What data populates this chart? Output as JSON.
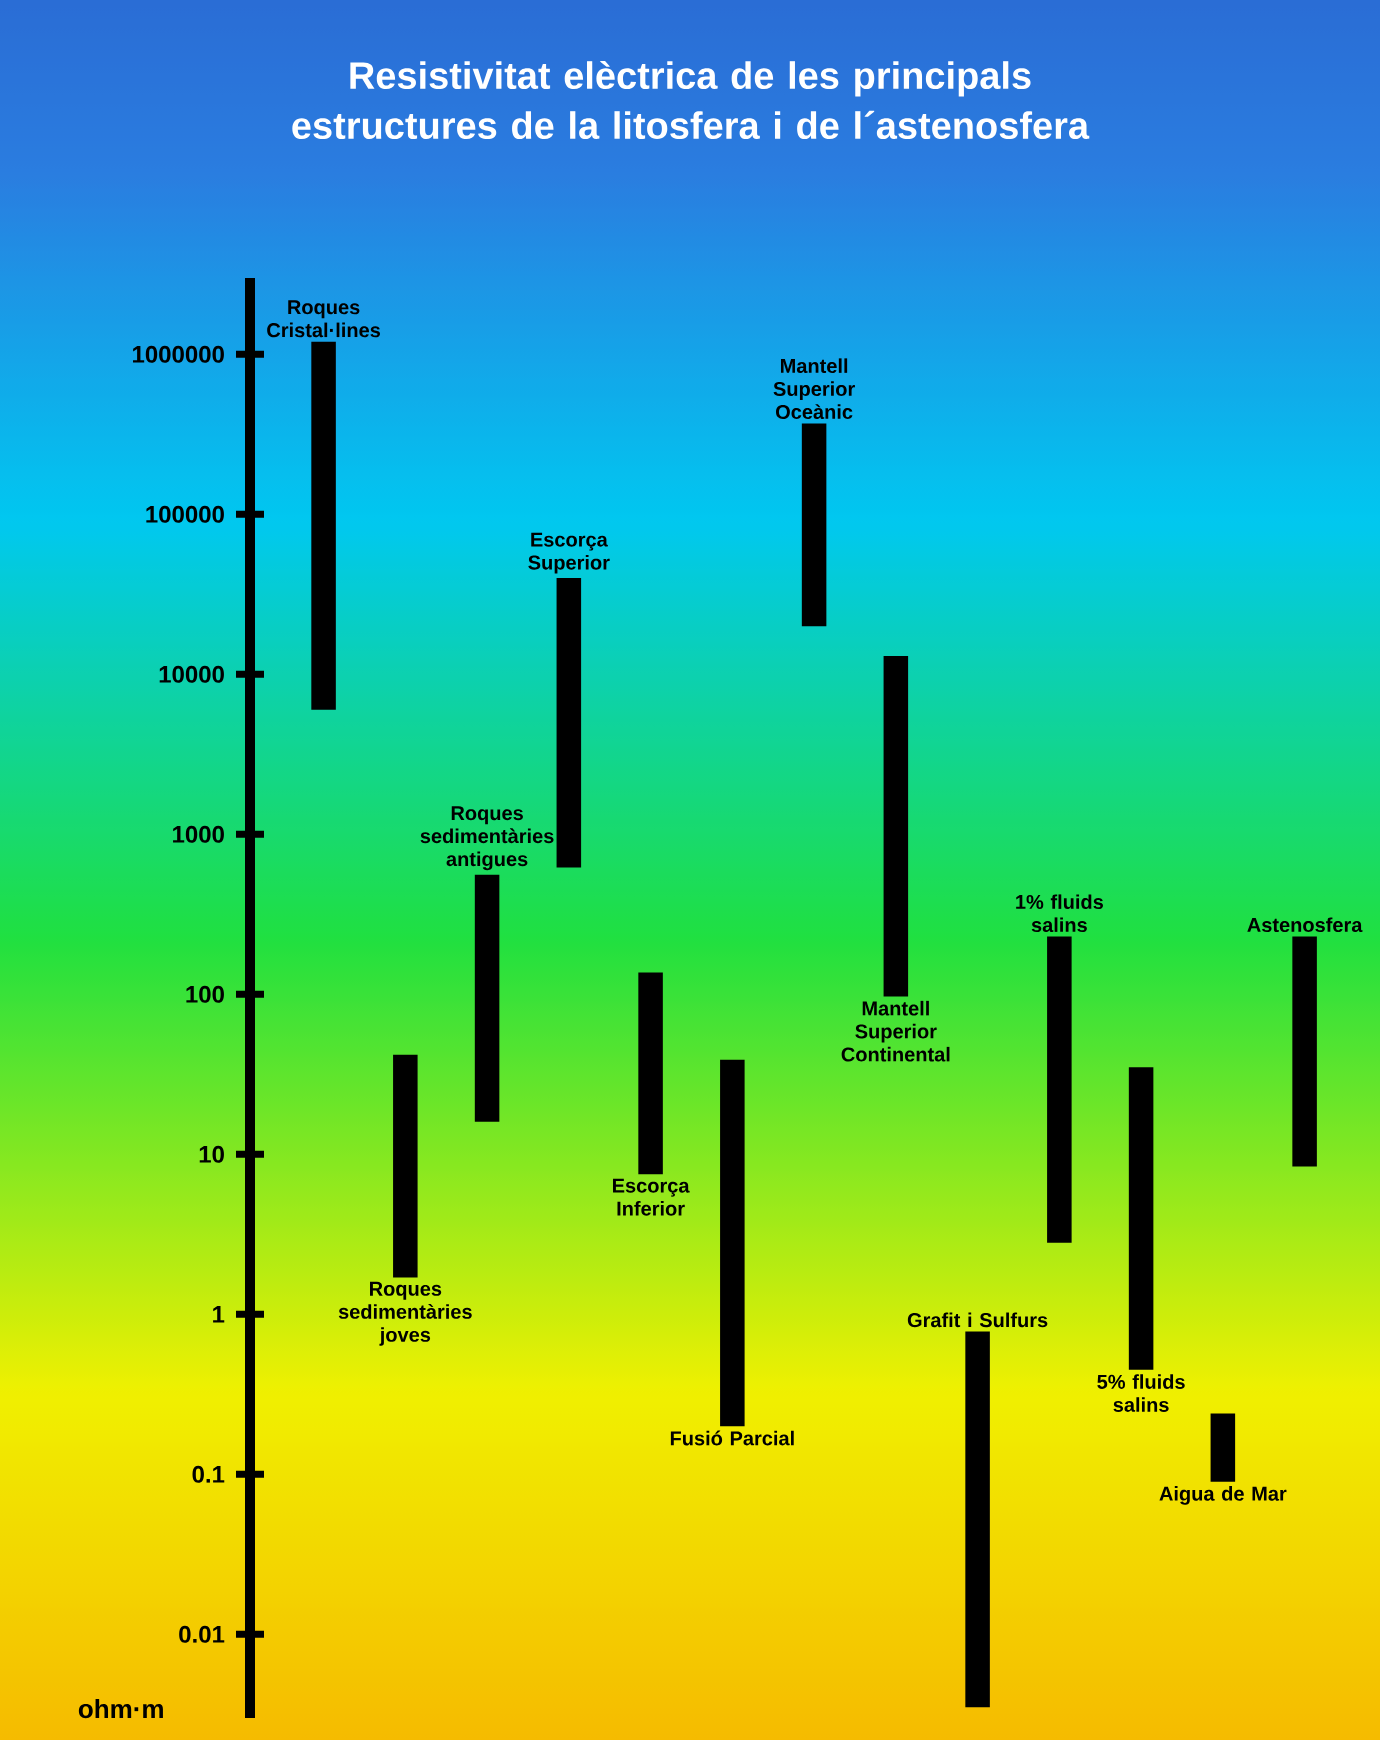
{
  "chart_data": {
    "type": "bar",
    "title": "Resistivitat elèctrica de les principals estructures de la litosfera i de l´astenosfera",
    "ylabel": "ohm·m",
    "categories": [
      "Roques Cristal·lines",
      "Roques sedimentàries joves",
      "Roques sedimentàries antigues",
      "Escorça Superior",
      "Escorça Inferior",
      "Fusió Parcial",
      "Mantell Superior Oceànic",
      "Mantell Superior Continental",
      "Grafit i Sulfurs",
      "1% fluids salins",
      "5% fluids salins",
      "Aigua de Mar",
      "Astenosfera"
    ],
    "base": [
      6000,
      1.7,
      16,
      620,
      7.5,
      0.2,
      20000,
      97,
      0.0035,
      2.8,
      0.45,
      0.09,
      8.4
    ],
    "values": [
      1194000,
      40.3,
      544,
      39380,
      129.5,
      38.8,
      350000,
      12903,
      0.7765,
      227.2,
      34.55,
      0.15,
      221.6
    ],
    "color": "#000000",
    "log": "y",
    "ylim": [
      0.003,
      3000000
    ],
    "yticks": [
      0.01,
      0.1,
      1,
      10,
      100,
      1000,
      10000,
      100000,
      1000000
    ]
  }
}
